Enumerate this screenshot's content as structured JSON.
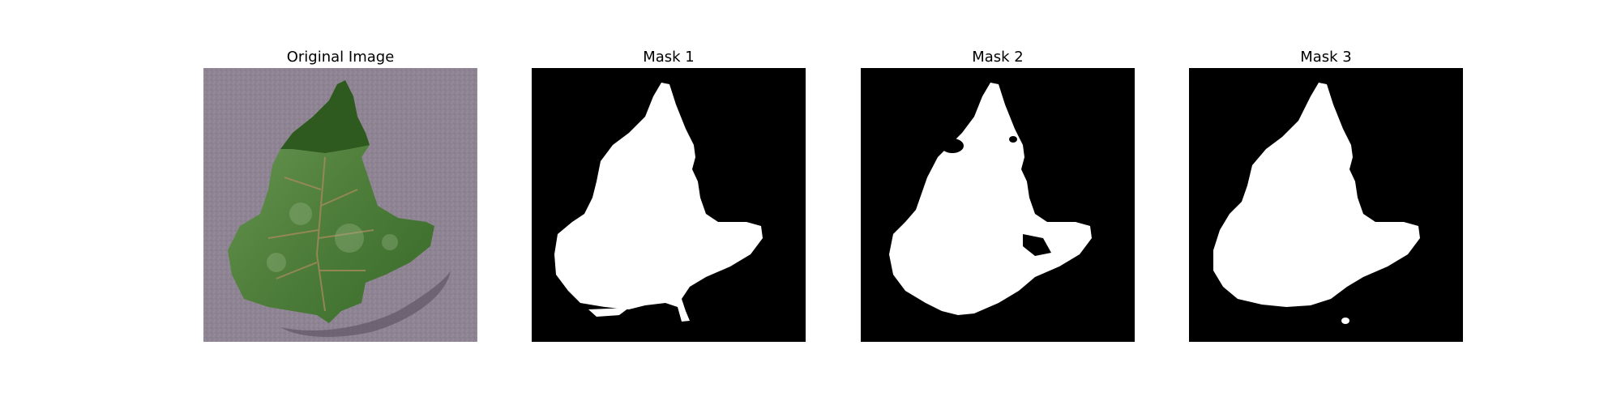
{
  "panels": [
    {
      "title": "Original Image"
    },
    {
      "title": "Mask 1"
    },
    {
      "title": "Mask 2"
    },
    {
      "title": "Mask 3"
    }
  ],
  "colors": {
    "background": "#ffffff",
    "photo_surface": "#8e8392",
    "leaf_dark": "#2f5a1f",
    "leaf_mid": "#4f7f3b",
    "leaf_light": "#7ea266",
    "mask_bg": "#000000",
    "mask_fg": "#ffffff"
  }
}
